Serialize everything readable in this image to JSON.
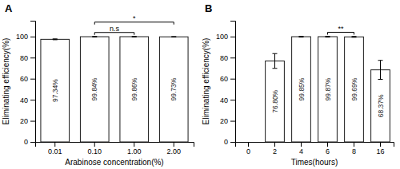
{
  "chart_data": [
    {
      "type": "bar",
      "title": "A",
      "categories": [
        "0.01",
        "0.10",
        "1.00",
        "2.00"
      ],
      "values": [
        97.34,
        99.84,
        99.86,
        99.73
      ],
      "errors": [
        0.4,
        0.2,
        0.2,
        0.2
      ],
      "data_labels": true,
      "value_labels": [
        "97.34%",
        "99.84%",
        "99.86%",
        "99.73%"
      ],
      "xlabel": "Arabinose concentration(%)",
      "ylabel": "Eliminating efficiency(%)",
      "ylim": [
        0,
        115
      ],
      "yticks": [
        0,
        20,
        40,
        60,
        80,
        100
      ],
      "color": "#ffffff",
      "grid": false,
      "annotations": [
        {
          "text": "n.s",
          "from": "0.10",
          "to": "1.00"
        },
        {
          "text": "*",
          "from": "0.10",
          "to": "2.00"
        }
      ]
    },
    {
      "type": "bar",
      "title": "B",
      "categories": [
        "0",
        "2",
        "4",
        "6",
        "8",
        "16"
      ],
      "values": [
        0,
        76.8,
        99.85,
        99.87,
        99.69,
        68.37
      ],
      "errors": [
        0,
        7.0,
        0.4,
        0.4,
        0.4,
        9.0
      ],
      "data_labels": true,
      "value_labels": [
        null,
        "76.80%",
        "99.85%",
        "99.87%",
        "99.69%",
        "68.37%"
      ],
      "xlabel": "Times(hours)",
      "ylabel": "Eliminating efficiency(%)",
      "ylim": [
        0,
        115
      ],
      "yticks": [
        0,
        20,
        40,
        60,
        80,
        100
      ],
      "color": "#ffffff",
      "grid": false,
      "annotations": [
        {
          "text": "**",
          "from": "6",
          "to": "8"
        }
      ]
    }
  ]
}
